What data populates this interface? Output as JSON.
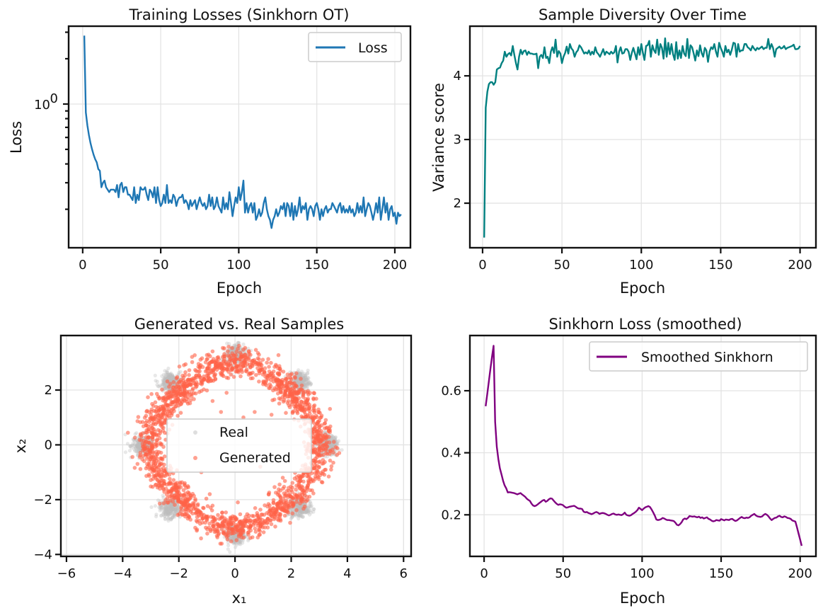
{
  "chart_data": [
    {
      "type": "line",
      "id": "training-losses",
      "title": "Training Losses  (Sinkhorn OT)",
      "xlabel": "Epoch",
      "ylabel": "Loss",
      "yscale": "log",
      "xlim": [
        -9,
        210
      ],
      "ylim": [
        0.111,
        3.29
      ],
      "xticks": [
        0,
        50,
        100,
        150,
        200
      ],
      "yticks_major": [
        {
          "value": 1,
          "label": "10^0"
        }
      ],
      "yticks_minor": [
        0.2,
        0.3,
        0.4,
        0.5,
        0.6,
        0.7,
        0.8,
        0.9,
        2,
        3
      ],
      "grid": true,
      "legend": {
        "position": "top-right",
        "entries": [
          "Loss"
        ]
      },
      "series": [
        {
          "name": "Loss",
          "color": "#1f77b4",
          "x_start": 1,
          "x_step": 1,
          "values": [
            2.85,
            0.88,
            0.72,
            0.62,
            0.55,
            0.5,
            0.46,
            0.43,
            0.41,
            0.37,
            0.36,
            0.28,
            0.3,
            0.31,
            0.28,
            0.27,
            0.26,
            0.27,
            0.27,
            0.27,
            0.26,
            0.29,
            0.24,
            0.29,
            0.3,
            0.26,
            0.28,
            0.28,
            0.25,
            0.25,
            0.24,
            0.23,
            0.28,
            0.22,
            0.25,
            0.23,
            0.28,
            0.27,
            0.27,
            0.28,
            0.25,
            0.23,
            0.27,
            0.26,
            0.24,
            0.28,
            0.22,
            0.28,
            0.23,
            0.21,
            0.22,
            0.25,
            0.22,
            0.29,
            0.22,
            0.23,
            0.22,
            0.25,
            0.24,
            0.21,
            0.23,
            0.24,
            0.24,
            0.25,
            0.22,
            0.23,
            0.22,
            0.2,
            0.23,
            0.21,
            0.22,
            0.23,
            0.2,
            0.22,
            0.24,
            0.22,
            0.21,
            0.22,
            0.2,
            0.21,
            0.25,
            0.21,
            0.24,
            0.2,
            0.21,
            0.24,
            0.21,
            0.2,
            0.19,
            0.24,
            0.2,
            0.22,
            0.2,
            0.26,
            0.22,
            0.18,
            0.21,
            0.24,
            0.22,
            0.28,
            0.23,
            0.26,
            0.31,
            0.19,
            0.22,
            0.19,
            0.21,
            0.22,
            0.19,
            0.22,
            0.17,
            0.18,
            0.2,
            0.18,
            0.19,
            0.22,
            0.24,
            0.2,
            0.18,
            0.17,
            0.15,
            0.17,
            0.18,
            0.2,
            0.18,
            0.19,
            0.21,
            0.2,
            0.22,
            0.18,
            0.22,
            0.21,
            0.18,
            0.22,
            0.17,
            0.21,
            0.18,
            0.2,
            0.24,
            0.19,
            0.21,
            0.2,
            0.22,
            0.17,
            0.2,
            0.21,
            0.2,
            0.18,
            0.21,
            0.22,
            0.2,
            0.17,
            0.2,
            0.18,
            0.2,
            0.21,
            0.19,
            0.2,
            0.2,
            0.22,
            0.21,
            0.2,
            0.19,
            0.21,
            0.22,
            0.19,
            0.21,
            0.19,
            0.2,
            0.19,
            0.21,
            0.19,
            0.2,
            0.18,
            0.19,
            0.22,
            0.19,
            0.21,
            0.19,
            0.24,
            0.18,
            0.2,
            0.22,
            0.21,
            0.19,
            0.17,
            0.19,
            0.22,
            0.19,
            0.24,
            0.17,
            0.2,
            0.24,
            0.19,
            0.22,
            0.17,
            0.2,
            0.21,
            0.18,
            0.19,
            0.16,
            0.19,
            0.18,
            0.185
          ]
        }
      ]
    },
    {
      "type": "line",
      "id": "sample-diversity",
      "title": "Sample Diversity Over Time",
      "xlabel": "Epoch",
      "ylabel": "Variance score",
      "xlim": [
        -8,
        210
      ],
      "ylim": [
        1.3,
        4.78
      ],
      "xticks": [
        0,
        50,
        100,
        150,
        200
      ],
      "yticks": [
        2,
        3,
        4
      ],
      "grid": true,
      "series": [
        {
          "name": "Variance score",
          "color": "#008080",
          "x_start": 1,
          "x_step": 1,
          "values": [
            1.46,
            3.5,
            3.75,
            3.87,
            3.9,
            3.9,
            3.86,
            3.9,
            4.1,
            4.12,
            4.13,
            4.2,
            4.24,
            4.38,
            4.3,
            4.34,
            4.36,
            4.32,
            4.47,
            4.33,
            4.2,
            4.1,
            4.3,
            4.41,
            4.34,
            4.39,
            4.4,
            4.33,
            4.38,
            4.35,
            4.35,
            4.34,
            4.34,
            4.35,
            4.12,
            4.3,
            4.33,
            4.28,
            4.45,
            4.28,
            4.3,
            4.2,
            4.38,
            4.45,
            4.36,
            4.57,
            4.3,
            4.39,
            4.35,
            4.2,
            4.3,
            4.36,
            4.46,
            4.35,
            4.5,
            4.43,
            4.4,
            4.3,
            4.37,
            4.4,
            4.48,
            4.45,
            4.4,
            4.35,
            4.37,
            4.35,
            4.4,
            4.33,
            4.38,
            4.34,
            4.45,
            4.37,
            4.34,
            4.3,
            4.36,
            4.42,
            4.33,
            4.38,
            4.36,
            4.34,
            4.38,
            4.35,
            4.37,
            4.47,
            4.21,
            4.38,
            4.45,
            4.35,
            4.36,
            4.42,
            4.42,
            4.38,
            4.25,
            4.36,
            4.44,
            4.35,
            4.26,
            4.45,
            4.33,
            4.5,
            4.36,
            4.25,
            4.47,
            4.48,
            4.55,
            4.3,
            4.48,
            4.4,
            4.36,
            4.57,
            4.33,
            4.5,
            4.44,
            4.27,
            4.59,
            4.3,
            4.52,
            4.34,
            4.5,
            4.34,
            4.25,
            4.53,
            4.27,
            4.4,
            4.28,
            4.47,
            4.35,
            4.31,
            4.58,
            4.28,
            4.48,
            4.45,
            4.35,
            4.24,
            4.4,
            4.31,
            4.48,
            4.36,
            4.3,
            4.44,
            4.4,
            4.22,
            4.38,
            4.45,
            4.42,
            4.5,
            4.38,
            4.3,
            4.52,
            4.44,
            4.38,
            4.3,
            4.47,
            4.37,
            4.41,
            4.33,
            4.41,
            4.52,
            4.51,
            4.3,
            4.5,
            4.38,
            4.4,
            4.4,
            4.5,
            4.5,
            4.45,
            4.43,
            4.4,
            4.47,
            4.43,
            4.4,
            4.44,
            4.42,
            4.44,
            4.46,
            4.42,
            4.44,
            4.44,
            4.58,
            4.42,
            4.5,
            4.44,
            4.3,
            4.42,
            4.44,
            4.46,
            4.43,
            4.44,
            4.47,
            4.42,
            4.44,
            4.45,
            4.46,
            4.47,
            4.49,
            4.42,
            4.42,
            4.43,
            4.47
          ]
        }
      ]
    },
    {
      "type": "scatter",
      "id": "generated-vs-real",
      "title": "Generated vs. Real Samples",
      "xlabel": "x₁",
      "ylabel": "x₂",
      "xlim": [
        -6.2,
        6.27
      ],
      "ylim": [
        -4.07,
        3.99
      ],
      "xticks": [
        -6,
        -4,
        -2,
        0,
        2,
        4,
        6
      ],
      "yticks": [
        -4,
        -2,
        0,
        2
      ],
      "grid": true,
      "legend": {
        "position": "center",
        "entries": [
          "Real",
          "Generated"
        ]
      },
      "series": [
        {
          "name": "Real",
          "color": "#bdbdbd",
          "alpha": 0.35,
          "description": "8-mode Gaussian mixture on a ring of radius ~3.1, centers at angles 0,45,...,315 deg",
          "mode_centers": [
            [
              3.3,
              0
            ],
            [
              2.3,
              2.3
            ],
            [
              0,
              3.3
            ],
            [
              -2.3,
              2.3
            ],
            [
              -3.3,
              0
            ],
            [
              -2.3,
              -2.3
            ],
            [
              0,
              -3.3
            ],
            [
              2.3,
              -2.3
            ]
          ],
          "spread": 0.18,
          "count": 2000
        },
        {
          "name": "Generated",
          "color": "#ff6347",
          "alpha": 0.6,
          "description": "ring of radius ~2.9 with density peaks near the 8 modes, a few scattered interior points",
          "ring_radius": 2.9,
          "ring_spread": 0.25,
          "count": 2000,
          "interior_points": [
            [
              -0.8,
              1.6
            ],
            [
              -0.5,
              1.2
            ],
            [
              0.3,
              1.0
            ],
            [
              0.7,
              1.2
            ],
            [
              1.3,
              1.1
            ],
            [
              -1.2,
              -1.0
            ],
            [
              -0.9,
              -1.8
            ],
            [
              0.1,
              -2.1
            ],
            [
              1.2,
              -1.8
            ],
            [
              0.9,
              -0.8
            ],
            [
              -0.3,
              1.9
            ],
            [
              -2.6,
              -0.5
            ],
            [
              1.7,
              -1.2
            ]
          ]
        }
      ]
    },
    {
      "type": "line",
      "id": "sinkhorn-smoothed",
      "title": "Sinkhorn Loss (smoothed)",
      "xlabel": "Epoch",
      "ylabel": "",
      "xlim": [
        -9,
        210
      ],
      "ylim": [
        0.066,
        0.778
      ],
      "xticks": [
        0,
        50,
        100,
        150,
        200
      ],
      "yticks": [
        0.2,
        0.4,
        0.6
      ],
      "grid": true,
      "legend": {
        "position": "top-right",
        "entries": [
          "Smoothed Sinkhorn"
        ]
      },
      "series": [
        {
          "name": "Smoothed Sinkhorn",
          "color": "#800080",
          "x_start": 1,
          "x_step": 1,
          "values": [
            0.55,
            0.59,
            0.63,
            0.67,
            0.71,
            0.745,
            0.5,
            0.42,
            0.38,
            0.35,
            0.33,
            0.31,
            0.295,
            0.285,
            0.272,
            0.273,
            0.272,
            0.271,
            0.27,
            0.268,
            0.266,
            0.268,
            0.27,
            0.266,
            0.262,
            0.258,
            0.252,
            0.248,
            0.245,
            0.236,
            0.23,
            0.228,
            0.23,
            0.234,
            0.238,
            0.242,
            0.246,
            0.248,
            0.242,
            0.245,
            0.25,
            0.253,
            0.252,
            0.246,
            0.24,
            0.235,
            0.232,
            0.234,
            0.233,
            0.231,
            0.226,
            0.223,
            0.224,
            0.226,
            0.227,
            0.228,
            0.229,
            0.226,
            0.222,
            0.22,
            0.22,
            0.219,
            0.21,
            0.208,
            0.209,
            0.206,
            0.204,
            0.202,
            0.204,
            0.207,
            0.209,
            0.207,
            0.203,
            0.205,
            0.206,
            0.205,
            0.203,
            0.2,
            0.198,
            0.2,
            0.203,
            0.204,
            0.201,
            0.2,
            0.201,
            0.2,
            0.199,
            0.202,
            0.207,
            0.2,
            0.198,
            0.197,
            0.199,
            0.203,
            0.206,
            0.21,
            0.215,
            0.223,
            0.219,
            0.215,
            0.22,
            0.224,
            0.226,
            0.228,
            0.225,
            0.217,
            0.208,
            0.198,
            0.185,
            0.183,
            0.184,
            0.186,
            0.19,
            0.188,
            0.185,
            0.183,
            0.183,
            0.182,
            0.181,
            0.18,
            0.175,
            0.168,
            0.166,
            0.17,
            0.176,
            0.185,
            0.188,
            0.186,
            0.19,
            0.196,
            0.195,
            0.194,
            0.195,
            0.193,
            0.192,
            0.194,
            0.19,
            0.192,
            0.188,
            0.19,
            0.192,
            0.187,
            0.185,
            0.181,
            0.179,
            0.18,
            0.183,
            0.182,
            0.181,
            0.186,
            0.184,
            0.182,
            0.185,
            0.184,
            0.183,
            0.186,
            0.187,
            0.183,
            0.18,
            0.182,
            0.186,
            0.19,
            0.193,
            0.19,
            0.189,
            0.191,
            0.19,
            0.192,
            0.197,
            0.2,
            0.203,
            0.198,
            0.195,
            0.194,
            0.193,
            0.195,
            0.2,
            0.203,
            0.2,
            0.195,
            0.188,
            0.183,
            0.187,
            0.19,
            0.191,
            0.195,
            0.197,
            0.193,
            0.192,
            0.195,
            0.193,
            0.19,
            0.189,
            0.187,
            0.182,
            0.18,
            0.178,
            0.16,
            0.14,
            0.12,
            0.1
          ]
        }
      ]
    }
  ]
}
